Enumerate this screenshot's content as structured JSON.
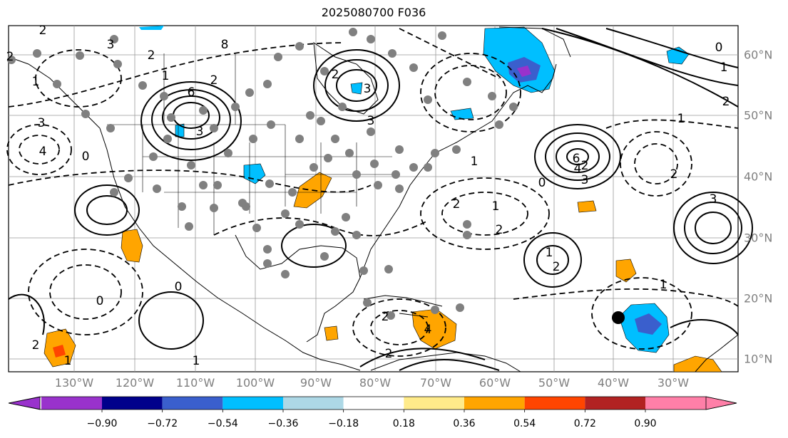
{
  "title": "2025080700 F036",
  "lon_labels": [
    "130°W",
    "120°W",
    "110°W",
    "100°W",
    "90°W",
    "80°W",
    "70°W",
    "60°W",
    "50°W",
    "40°W",
    "30°W"
  ],
  "lat_labels": [
    "60°N",
    "50°N",
    "40°N",
    "30°N",
    "20°N",
    "10°N"
  ],
  "colorbar": {
    "ticks": [
      "−0.90",
      "−0.72",
      "−0.54",
      "−0.36",
      "−0.18",
      "0.18",
      "0.36",
      "0.54",
      "0.72",
      "0.90"
    ],
    "colors": [
      "#9932cc",
      "#00008b",
      "#3a5fcd",
      "#00bfff",
      "#add8e6",
      "#ffffff",
      "#ffeb8a",
      "#ffa500",
      "#ff4500",
      "#b22222",
      "#ff7fa8"
    ]
  },
  "contour_labels": [
    "2",
    "3",
    "1",
    "2",
    "0",
    "1",
    "2",
    "6",
    "8",
    "2",
    "3",
    "4",
    "3",
    "2",
    "3",
    "3",
    "6",
    "4",
    "3",
    "1",
    "0",
    "1",
    "2",
    "2",
    "1",
    "2",
    "2",
    "3",
    "2",
    "1",
    "0",
    "1",
    "2",
    "1",
    "2",
    "4",
    "2",
    "1",
    "2",
    "0",
    "1",
    "0"
  ],
  "fill_colors": {
    "blue_light": "#add8e6",
    "blue": "#00bfff",
    "blue_dark": "#3a5fcd",
    "purple": "#9932cc",
    "orange": "#ffa500",
    "red": "#ff4500"
  },
  "station_marker_color": "#808080",
  "storm_marker_color": "#000000"
}
